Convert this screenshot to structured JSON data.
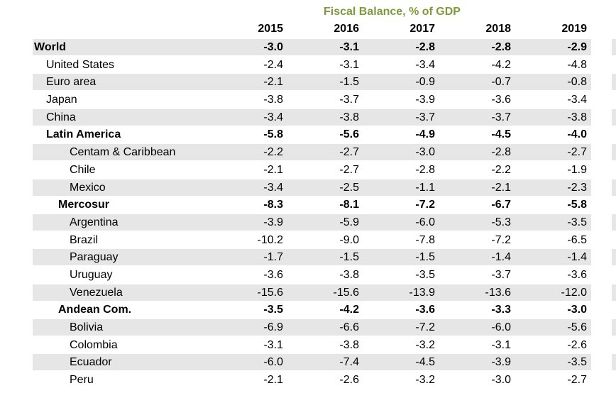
{
  "title": "Fiscal Balance, % of GDP",
  "years": [
    "2015",
    "2016",
    "2017",
    "2018",
    "2019"
  ],
  "rows": [
    {
      "label": "World",
      "values": [
        "-3.0",
        "-3.1",
        "-2.8",
        "-2.8",
        "-2.9"
      ]
    },
    {
      "label": "United States",
      "values": [
        "-2.4",
        "-3.1",
        "-3.4",
        "-4.2",
        "-4.8"
      ]
    },
    {
      "label": "Euro area",
      "values": [
        "-2.1",
        "-1.5",
        "-0.9",
        "-0.7",
        "-0.8"
      ]
    },
    {
      "label": "Japan",
      "values": [
        "-3.8",
        "-3.7",
        "-3.9",
        "-3.6",
        "-3.4"
      ]
    },
    {
      "label": "China",
      "values": [
        "-3.4",
        "-3.8",
        "-3.7",
        "-3.7",
        "-3.8"
      ]
    },
    {
      "label": "Latin America",
      "values": [
        "-5.8",
        "-5.6",
        "-4.9",
        "-4.5",
        "-4.0"
      ]
    },
    {
      "label": "Centam & Caribbean",
      "values": [
        "-2.2",
        "-2.7",
        "-3.0",
        "-2.8",
        "-2.7"
      ]
    },
    {
      "label": "Chile",
      "values": [
        "-2.1",
        "-2.7",
        "-2.8",
        "-2.2",
        "-1.9"
      ]
    },
    {
      "label": "Mexico",
      "values": [
        "-3.4",
        "-2.5",
        "-1.1",
        "-2.1",
        "-2.3"
      ]
    },
    {
      "label": "Mercosur",
      "values": [
        "-8.3",
        "-8.1",
        "-7.2",
        "-6.7",
        "-5.8"
      ]
    },
    {
      "label": "Argentina",
      "values": [
        "-3.9",
        "-5.9",
        "-6.0",
        "-5.3",
        "-3.5"
      ]
    },
    {
      "label": "Brazil",
      "values": [
        "-10.2",
        "-9.0",
        "-7.8",
        "-7.2",
        "-6.5"
      ]
    },
    {
      "label": "Paraguay",
      "values": [
        "-1.7",
        "-1.5",
        "-1.5",
        "-1.4",
        "-1.4"
      ]
    },
    {
      "label": "Uruguay",
      "values": [
        "-3.6",
        "-3.8",
        "-3.5",
        "-3.7",
        "-3.6"
      ]
    },
    {
      "label": "Venezuela",
      "values": [
        "-15.6",
        "-15.6",
        "-13.9",
        "-13.6",
        "-12.0"
      ]
    },
    {
      "label": "Andean Com.",
      "values": [
        "-3.5",
        "-4.2",
        "-3.6",
        "-3.3",
        "-3.0"
      ]
    },
    {
      "label": "Bolivia",
      "values": [
        "-6.9",
        "-6.6",
        "-7.2",
        "-6.0",
        "-5.6"
      ]
    },
    {
      "label": "Colombia",
      "values": [
        "-3.1",
        "-3.8",
        "-3.2",
        "-3.1",
        "-2.6"
      ]
    },
    {
      "label": "Ecuador",
      "values": [
        "-6.0",
        "-7.4",
        "-4.5",
        "-3.9",
        "-3.5"
      ]
    },
    {
      "label": "Peru",
      "values": [
        "-2.1",
        "-2.6",
        "-3.2",
        "-3.0",
        "-2.7"
      ]
    }
  ]
}
